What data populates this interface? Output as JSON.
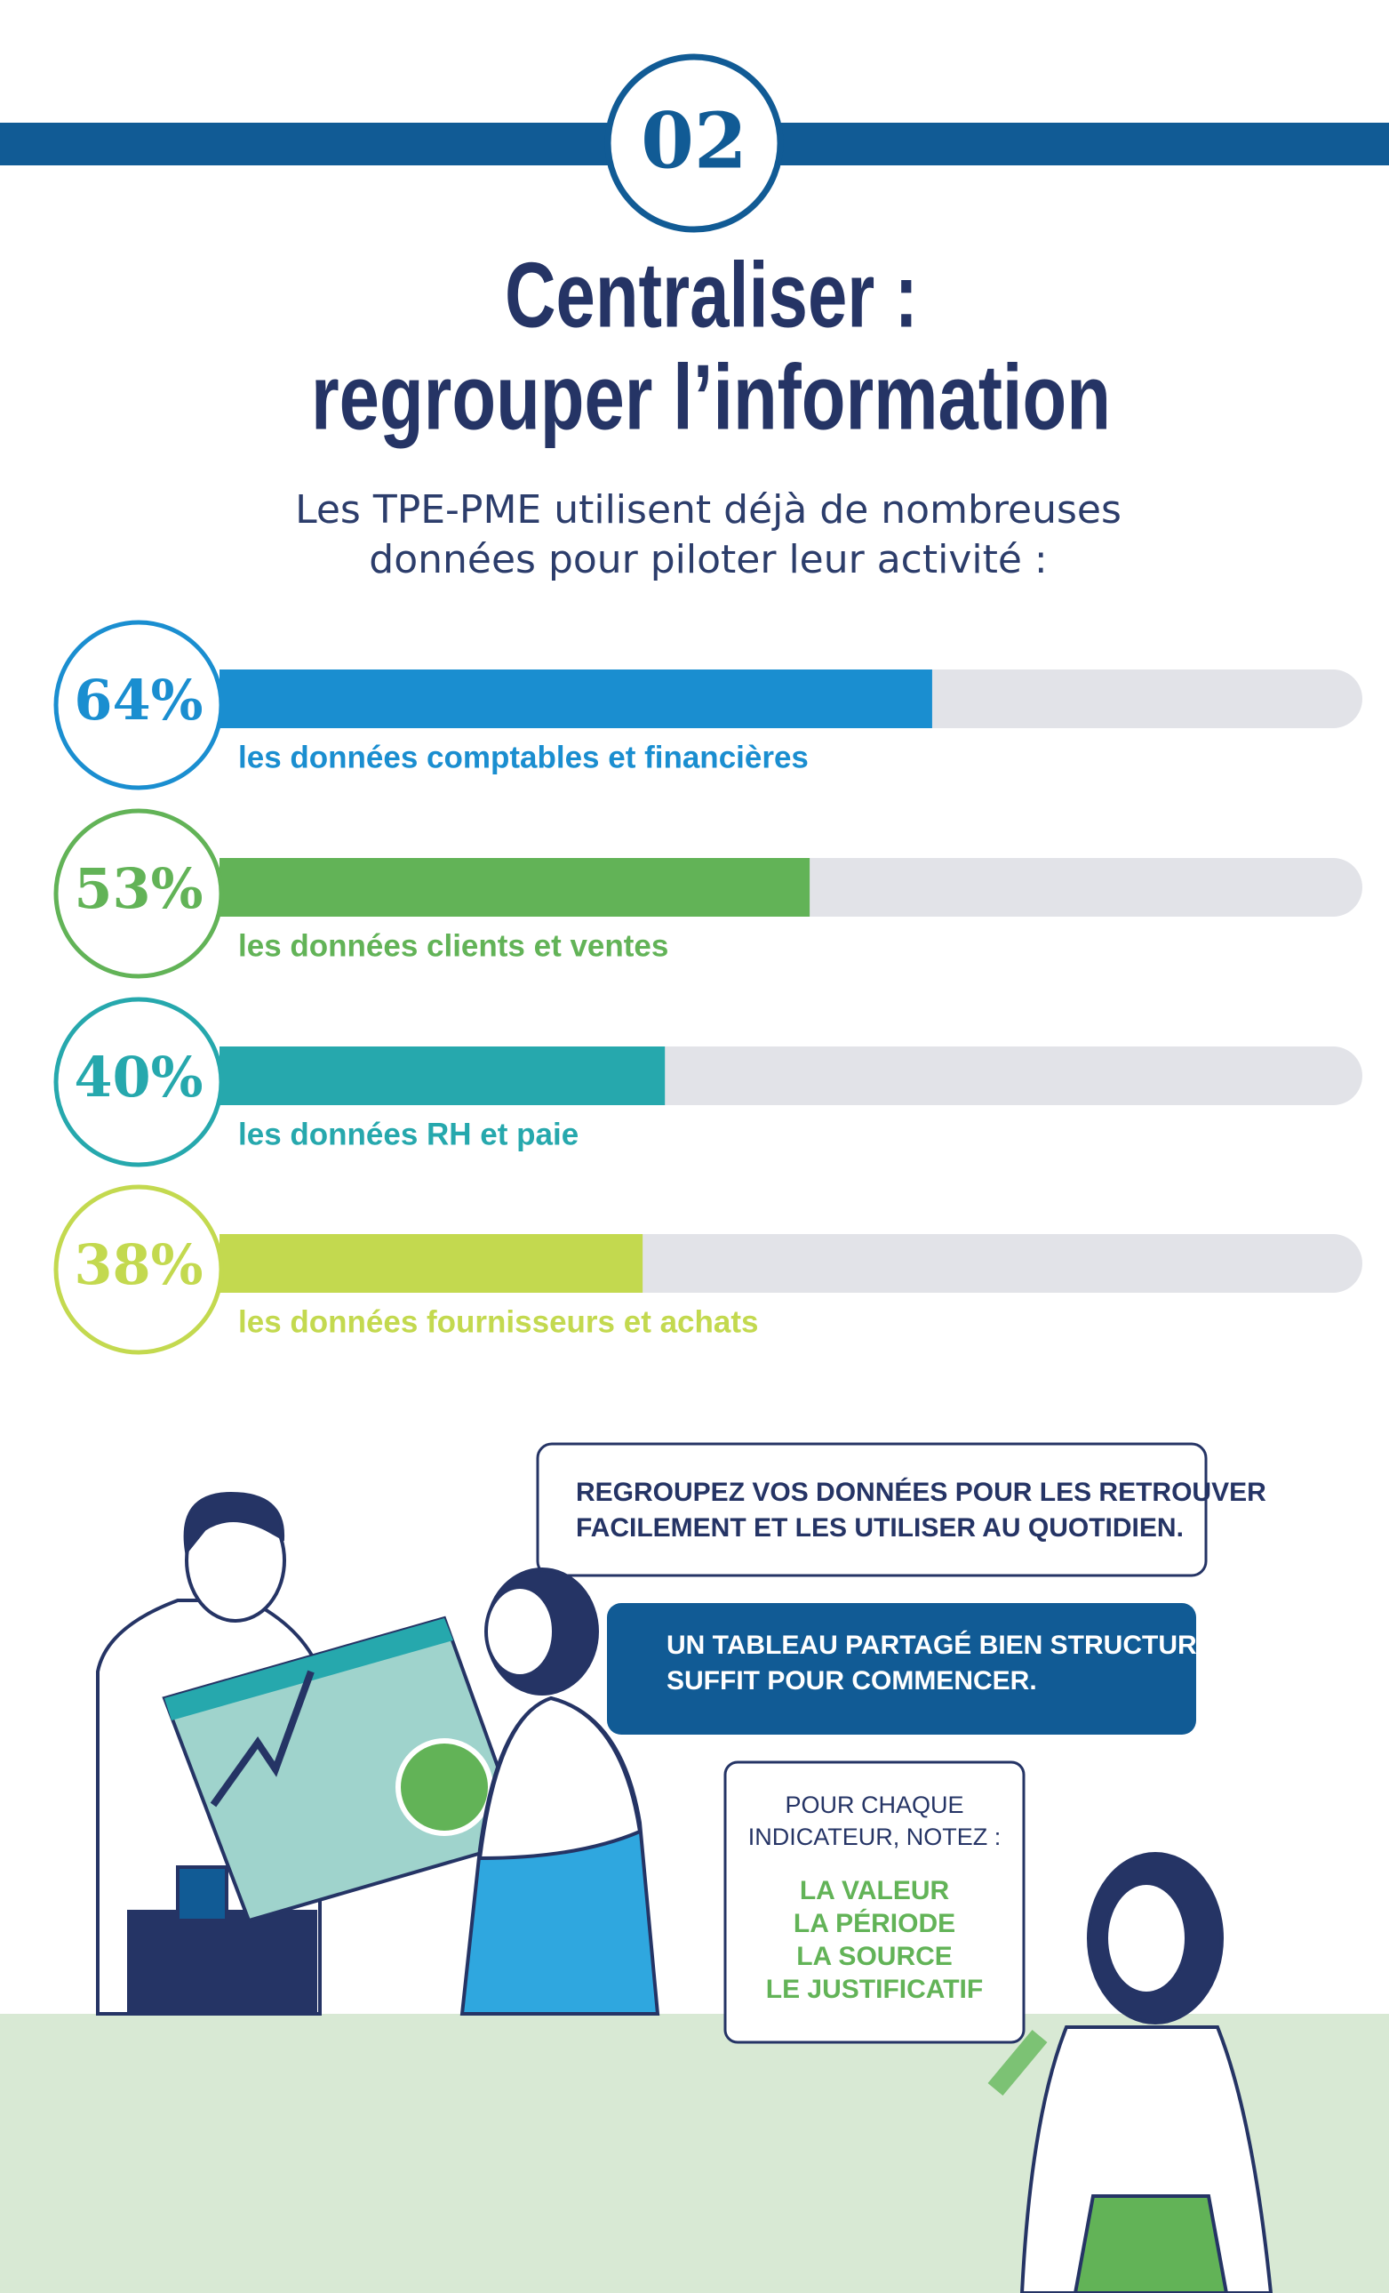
{
  "header": {
    "number": "02",
    "title_lines": [
      "Centraliser :",
      "regrouper l’information"
    ],
    "subtitle_lines": [
      "Les TPE-PME utilisent déjà de nombreuses",
      "données pour piloter leur activité :"
    ]
  },
  "chart_data": {
    "type": "bar",
    "categories": [
      "les données comptables et financières",
      "les données clients et ventes",
      "les données RH et paie",
      "les données fournisseurs et achats"
    ],
    "values": [
      64,
      53,
      40,
      38
    ],
    "value_labels": [
      "64%",
      "53%",
      "40%",
      "38%"
    ],
    "colors": [
      "#1a8ed0",
      "#62b357",
      "#26a8ad",
      "#c3d94f"
    ],
    "xlim": [
      0,
      100
    ]
  },
  "callouts": {
    "first": [
      "REGROUPEZ VOS DONNÉES POUR LES RETROUVER",
      "FACILEMENT ET LES UTILISER AU QUOTIDIEN."
    ],
    "second": [
      "UN TABLEAU PARTAGÉ BIEN STRUCTURÉ",
      "SUFFIT POUR COMMENCER."
    ],
    "third": {
      "intro": [
        "POUR CHAQUE",
        "INDICATEUR, NOTEZ :"
      ],
      "items": [
        "LA VALEUR",
        "LA PÉRIODE",
        "LA SOURCE",
        "LE JUSTIFICATIF"
      ]
    }
  }
}
